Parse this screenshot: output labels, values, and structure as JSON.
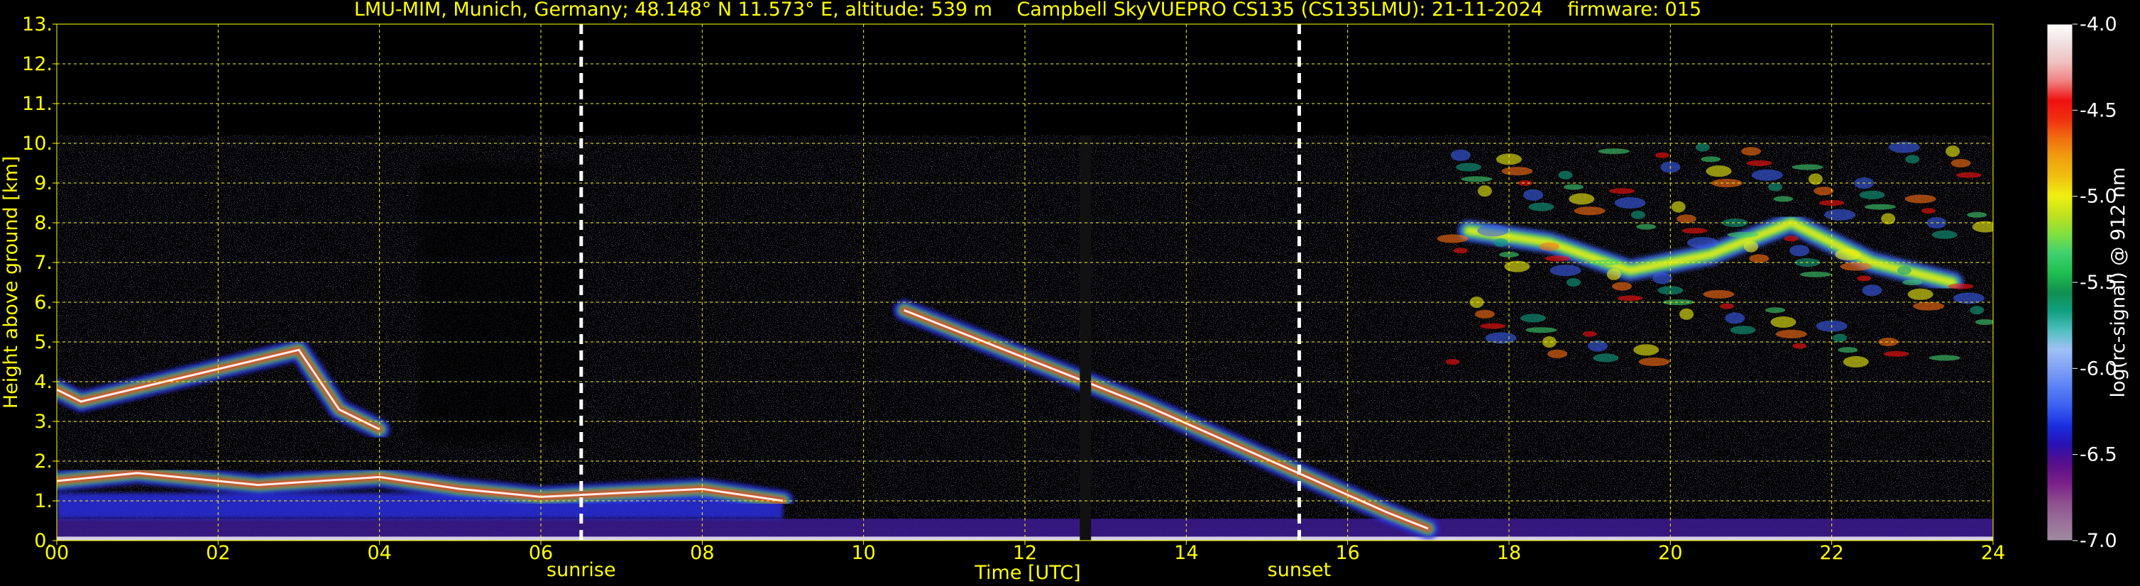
{
  "chart_data": {
    "type": "heatmap",
    "title": "LMU-MIM, Munich, Germany; 48.148° N 11.573° E, altitude: 539 m    Campbell SkyVUEPRO CS135 (CS135LMU): 21-11-2024    firmware: 015",
    "xlabel": "Time [UTC]",
    "ylabel": "Height above ground [km]",
    "colorbar_label": "log(rc-signal) @ 912 nm",
    "xlim": [
      0,
      24
    ],
    "ylim": [
      0,
      13
    ],
    "x_ticks": [
      "00",
      "02",
      "04",
      "06",
      "08",
      "10",
      "12",
      "14",
      "16",
      "18",
      "20",
      "22",
      "24"
    ],
    "y_ticks": [
      "0.",
      "1.",
      "2.",
      "3.",
      "4.",
      "5.",
      "6.",
      "7.",
      "8.",
      "9.",
      "10.",
      "11.",
      "12.",
      "13."
    ],
    "colorbar_ticks": [
      "-4.0",
      "-4.5",
      "-5.0",
      "-5.5",
      "-6.0",
      "-6.5",
      "-7.0"
    ],
    "colorbar_range": [
      -7.0,
      -4.0
    ],
    "colorbar_colors": [
      "#a08aa0",
      "#9a6f9a",
      "#8e4f8e",
      "#7a1f8a",
      "#5a0f8a",
      "#2a10b0",
      "#1a2ee0",
      "#3a5ef0",
      "#5a80f5",
      "#80a0f5",
      "#a0c0f5",
      "#50c0c0",
      "#10a080",
      "#109050",
      "#20c050",
      "#40d070",
      "#80e040",
      "#c0e020",
      "#f0f010",
      "#f0c010",
      "#f0a010",
      "#f07010",
      "#f03010",
      "#f01010",
      "#f08080",
      "#f0c0c0",
      "#f0e0e0",
      "#ffffff"
    ],
    "annotations": [
      {
        "label": "sunrise",
        "x": 6.5
      },
      {
        "label": "sunset",
        "x": 15.4
      }
    ],
    "data_gap": {
      "x_start": 12.68,
      "x_end": 12.82
    },
    "signal_top_km": 10.2,
    "grid": true,
    "grid_color": "#ffff00",
    "text_color": "#ffff00",
    "features": [
      {
        "name": "boundary layer / low cloud",
        "x": [
          0.0,
          0.5,
          1.0,
          2.5,
          4.0,
          5.0,
          6.0,
          7.0,
          8.0,
          9.0
        ],
        "y": [
          1.5,
          1.6,
          1.7,
          1.4,
          1.6,
          1.3,
          1.1,
          1.2,
          1.3,
          1.0
        ]
      },
      {
        "name": "mid-level cloud (early)",
        "x": [
          0.0,
          0.3,
          3.0,
          3.5,
          4.0
        ],
        "y": [
          3.8,
          3.5,
          4.8,
          3.3,
          2.8
        ]
      },
      {
        "name": "descending cloud layer",
        "x": [
          10.5,
          11.5,
          12.5,
          13.5,
          14.5,
          15.5,
          16.5,
          17.0
        ],
        "y": [
          5.8,
          5.0,
          4.2,
          3.4,
          2.5,
          1.6,
          0.7,
          0.3
        ]
      },
      {
        "name": "high cirrus",
        "x": [
          17.5,
          18.5,
          19.5,
          20.5,
          21.5,
          22.5,
          23.5
        ],
        "y": [
          7.8,
          7.5,
          6.8,
          7.2,
          8.0,
          7.0,
          6.5
        ]
      }
    ]
  }
}
